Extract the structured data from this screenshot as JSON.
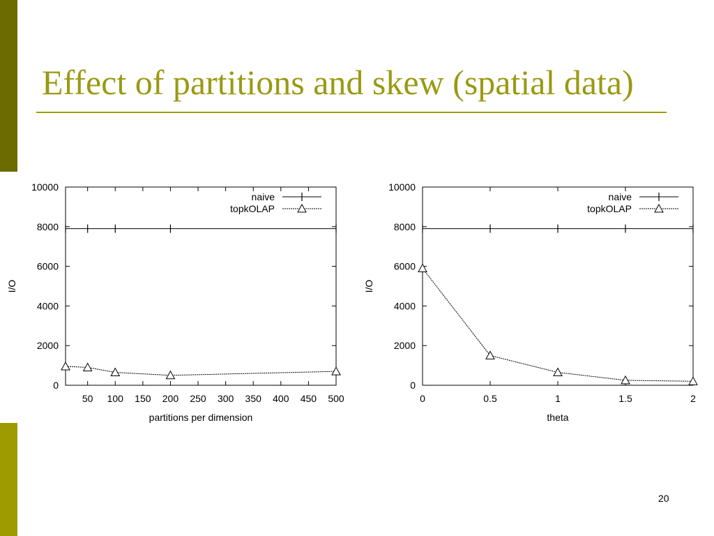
{
  "slide": {
    "title": "Effect of partitions and skew (spatial data)",
    "page_number": "20",
    "colors": {
      "title": "#9a9a14",
      "bar_dark": "#6b6b00",
      "bar_light": "#9c9c00"
    }
  },
  "chart_data": [
    {
      "type": "line",
      "xlabel": "partitions per dimension",
      "ylabel": "I/O",
      "xlim": [
        10,
        500
      ],
      "ylim": [
        0,
        10000
      ],
      "x_ticks": [
        50,
        100,
        150,
        200,
        250,
        300,
        350,
        400,
        450,
        500
      ],
      "y_ticks": [
        0,
        2000,
        4000,
        6000,
        8000,
        10000
      ],
      "legend_position": "top-right",
      "series": [
        {
          "name": "naive",
          "x": [
            10,
            50,
            100,
            200,
            500
          ],
          "y": [
            7900,
            7900,
            7900,
            7900,
            7900
          ],
          "marker": "plus",
          "style": "solid"
        },
        {
          "name": "topkOLAP",
          "x": [
            10,
            50,
            100,
            200,
            500
          ],
          "y": [
            950,
            900,
            650,
            500,
            700
          ],
          "marker": "triangle",
          "style": "dotted"
        }
      ]
    },
    {
      "type": "line",
      "xlabel": "theta",
      "ylabel": "I/O",
      "xlim": [
        0,
        2
      ],
      "ylim": [
        0,
        10000
      ],
      "x_ticks": [
        0,
        0.5,
        1,
        1.5,
        2
      ],
      "y_ticks": [
        0,
        2000,
        4000,
        6000,
        8000,
        10000
      ],
      "legend_position": "top-right",
      "series": [
        {
          "name": "naive",
          "x": [
            0,
            0.5,
            1,
            1.5,
            2
          ],
          "y": [
            7900,
            7900,
            7900,
            7900,
            7900
          ],
          "marker": "plus",
          "style": "solid"
        },
        {
          "name": "topkOLAP",
          "x": [
            0,
            0.5,
            1,
            1.5,
            2
          ],
          "y": [
            5900,
            1500,
            650,
            250,
            200
          ],
          "marker": "triangle",
          "style": "dotted"
        }
      ]
    }
  ]
}
